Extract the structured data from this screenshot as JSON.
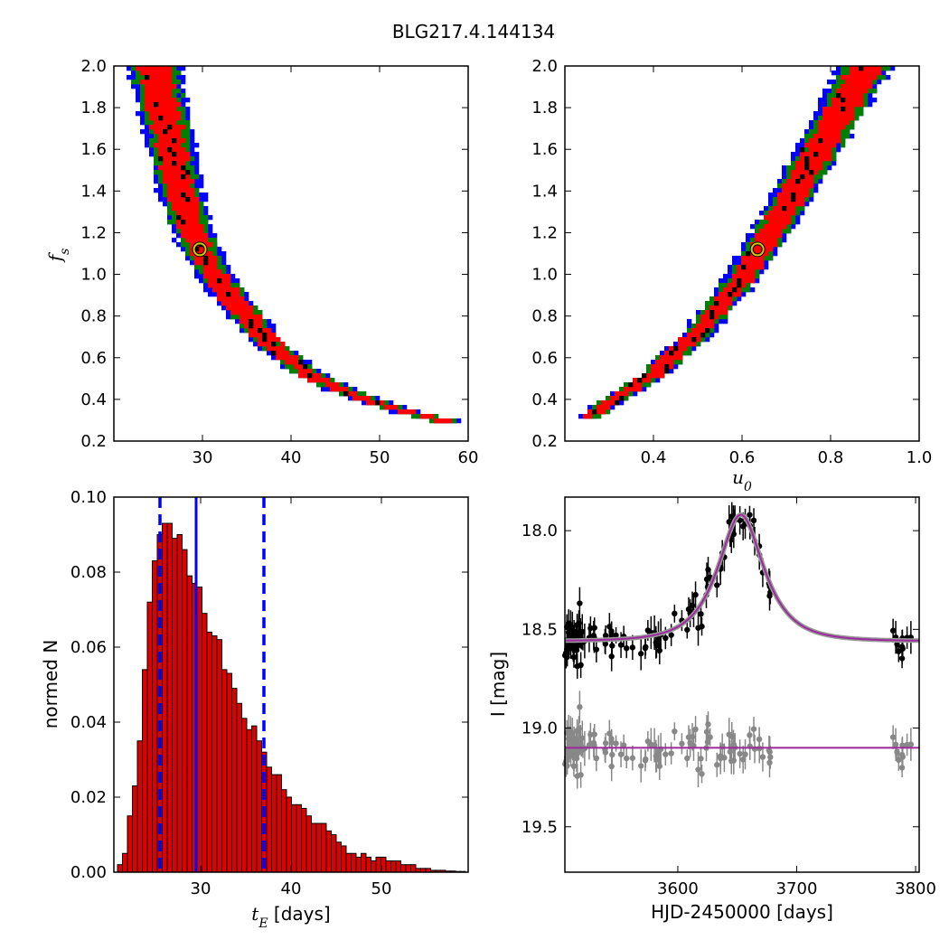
{
  "figure": {
    "title": "BLG217.4.144134"
  },
  "colors": {
    "blue_band": "#0000ff",
    "green_band": "#008000",
    "red_band": "#ff0000",
    "best_grid": "#000000",
    "best_marker": "#cccc00",
    "histogram_bar": "#dd0000",
    "median_line": "#0000ff",
    "model_curve": "#9b2a9b",
    "data_points": "#000000",
    "residual_points": "#888888"
  },
  "chart_data": [
    {
      "type": "heatmap",
      "xlabel": "",
      "ylabel": "f_s",
      "xlim": [
        20,
        60
      ],
      "ylim": [
        0.2,
        2.0
      ],
      "xticks": [
        30,
        40,
        50,
        60
      ],
      "yticks": [
        0.2,
        0.4,
        0.6,
        0.8,
        1.0,
        1.2,
        1.4,
        1.6,
        1.8,
        2.0
      ],
      "band_centerline": [
        {
          "x": 24.5,
          "y": 2.0
        },
        {
          "x": 25.5,
          "y": 1.8
        },
        {
          "x": 26.5,
          "y": 1.6
        },
        {
          "x": 27.5,
          "y": 1.4
        },
        {
          "x": 28.5,
          "y": 1.25
        },
        {
          "x": 30,
          "y": 1.1
        },
        {
          "x": 32,
          "y": 0.95
        },
        {
          "x": 35,
          "y": 0.8
        },
        {
          "x": 38,
          "y": 0.65
        },
        {
          "x": 42,
          "y": 0.52
        },
        {
          "x": 47,
          "y": 0.42
        },
        {
          "x": 52,
          "y": 0.35
        },
        {
          "x": 58,
          "y": 0.29
        }
      ],
      "best_fit": {
        "x": 29.7,
        "y": 1.12
      }
    },
    {
      "type": "heatmap",
      "xlabel": "u_0",
      "ylabel": "",
      "xlim": [
        0.2,
        1.0
      ],
      "ylim": [
        0.2,
        2.0
      ],
      "xticks": [
        0.4,
        0.6,
        0.8,
        1.0
      ],
      "yticks": [
        0.2,
        0.4,
        0.6,
        0.8,
        1.0,
        1.2,
        1.4,
        1.6,
        1.8,
        2.0
      ],
      "band_centerline": [
        {
          "x": 0.24,
          "y": 0.3
        },
        {
          "x": 0.3,
          "y": 0.38
        },
        {
          "x": 0.4,
          "y": 0.52
        },
        {
          "x": 0.5,
          "y": 0.72
        },
        {
          "x": 0.6,
          "y": 0.98
        },
        {
          "x": 0.7,
          "y": 1.32
        },
        {
          "x": 0.8,
          "y": 1.7
        },
        {
          "x": 0.88,
          "y": 2.0
        }
      ],
      "best_fit": {
        "x": 0.635,
        "y": 1.12
      }
    },
    {
      "type": "bar",
      "xlabel": "t_E [days]",
      "ylabel": "normed N",
      "xlim": [
        20.4,
        59.6
      ],
      "ylim": [
        0.0,
        0.1
      ],
      "xticks": [
        30,
        40,
        50
      ],
      "yticks": [
        0.0,
        0.02,
        0.04,
        0.06,
        0.08,
        0.1
      ],
      "bin_start": 20.8,
      "bin_width": 0.55,
      "values": [
        0.002,
        0.005,
        0.015,
        0.023,
        0.035,
        0.054,
        0.072,
        0.083,
        0.09,
        0.093,
        0.093,
        0.089,
        0.09,
        0.086,
        0.079,
        0.077,
        0.076,
        0.069,
        0.064,
        0.063,
        0.062,
        0.054,
        0.053,
        0.049,
        0.045,
        0.041,
        0.038,
        0.039,
        0.035,
        0.032,
        0.028,
        0.026,
        0.026,
        0.022,
        0.02,
        0.018,
        0.018,
        0.017,
        0.015,
        0.013,
        0.013,
        0.013,
        0.011,
        0.01,
        0.008,
        0.007,
        0.005,
        0.005,
        0.004,
        0.005,
        0.004,
        0.003,
        0.004,
        0.004,
        0.003,
        0.003,
        0.003,
        0.002,
        0.002,
        0.002,
        0.001,
        0.001,
        0.001,
        0.0005,
        0.0005,
        0.0005,
        0.0003,
        0.0003,
        0.0002,
        0.0002,
        0.0001
      ],
      "median": 29.5,
      "lower_bound": 25.5,
      "upper_bound": 37.0
    },
    {
      "type": "scatter",
      "xlabel": "HJD-2450000 [days]",
      "ylabel": "I [mag]",
      "xlim": [
        3505,
        3803
      ],
      "ylim": [
        19.73,
        17.83
      ],
      "xticks": [
        3600,
        3700,
        3800
      ],
      "yticks": [
        18.0,
        18.5,
        19.0,
        19.5
      ],
      "model": {
        "t0": 3653,
        "tE": 29.5,
        "u0": 0.635,
        "baseline": 18.56
      },
      "residual_offset": 19.1
    }
  ]
}
